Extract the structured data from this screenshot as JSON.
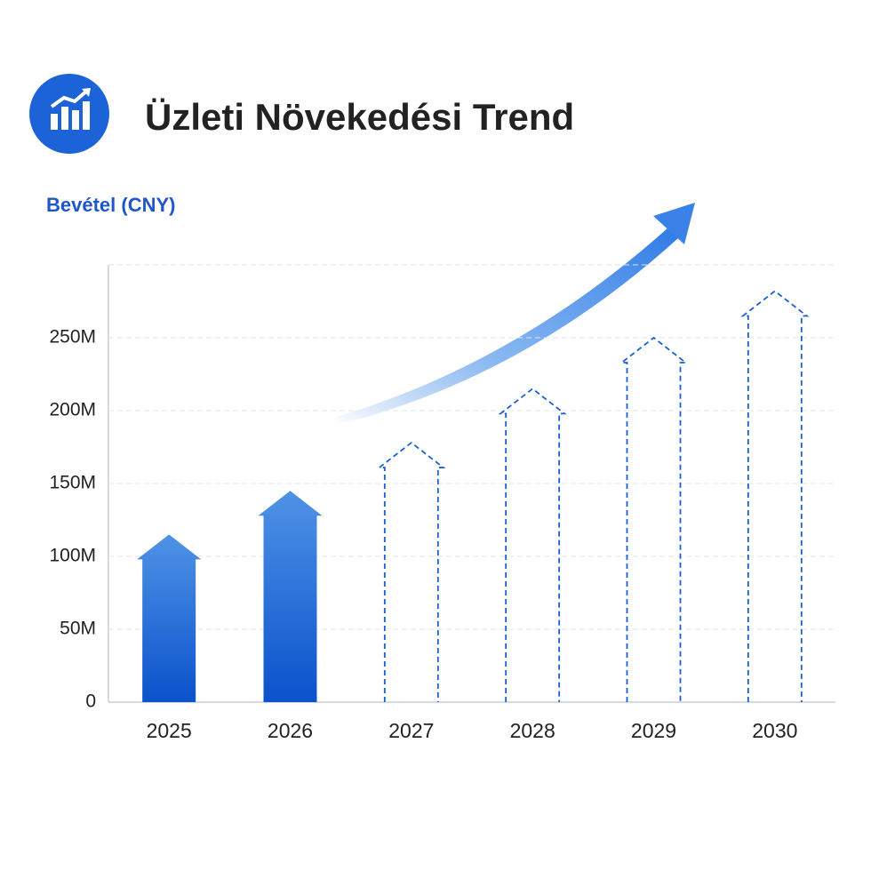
{
  "chart_data": {
    "type": "bar",
    "title": "Üzleti Növekedési Trend",
    "y_label": "Bevétel (CNY)",
    "categories": [
      "2025",
      "2026",
      "2027",
      "2028",
      "2029",
      "2030"
    ],
    "values": [
      115000000,
      145000000,
      178000000,
      215000000,
      250000000,
      282000000
    ],
    "bar_styles": [
      "solid",
      "solid",
      "dashed",
      "dashed",
      "dashed",
      "dashed"
    ],
    "color": "#1a5fd6",
    "ylim": [
      0,
      300000000
    ],
    "yticks": [
      0,
      {
        "value": 50000000,
        "label": "50M"
      },
      {
        "value": 100000000,
        "label": "100M"
      },
      {
        "value": 150000000,
        "label": "150M"
      },
      {
        "value": 200000000,
        "label": "200M"
      },
      {
        "value": 250000000,
        "label": "250M"
      }
    ],
    "grid": true
  }
}
